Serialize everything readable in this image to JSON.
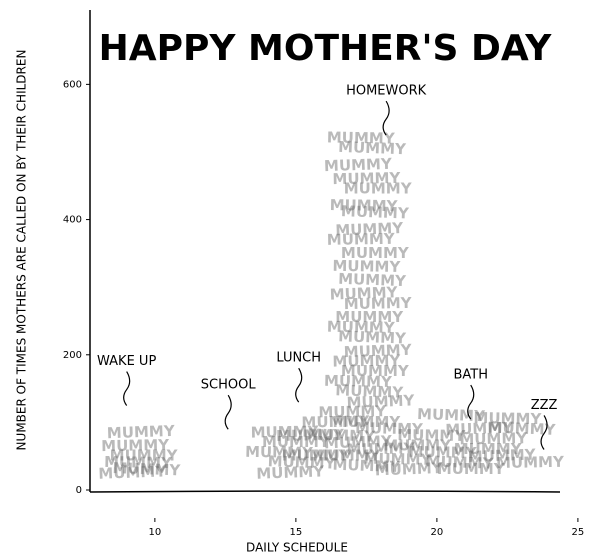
{
  "chart_data": {
    "type": "scatter",
    "title": "HAPPY MOTHER'S DAY",
    "xlabel": "DAILY SCHEDULE",
    "ylabel": "NUMBER OF TIMES MOTHERS ARE CALLED ON BY THEIR CHILDREN",
    "marker_text": "MUMMY",
    "color": "#666666",
    "xlim": [
      7.7,
      25
    ],
    "xticks": [
      10,
      15,
      20,
      25
    ],
    "ylim": [
      0,
      710
    ],
    "yticks": [
      0,
      200,
      400,
      600
    ],
    "x": [
      9.5,
      9.3,
      9.6,
      9.4,
      9.7,
      9.2,
      14.6,
      15.0,
      14.4,
      15.2,
      14.8,
      15.5,
      15.7,
      17.3,
      17.7,
      17.2,
      17.5,
      17.9,
      17.4,
      17.8,
      17.6,
      17.3,
      17.8,
      17.5,
      17.7,
      17.4,
      17.9,
      17.6,
      17.3,
      17.7,
      17.9,
      17.5,
      17.8,
      17.2,
      17.6,
      18.0,
      17.0,
      17.5,
      18.3,
      16.6,
      17.2,
      18.0,
      16.8,
      18.6,
      17.5,
      19.0,
      16.4,
      19.3,
      20.2,
      20.8,
      21.5,
      22.0,
      21.2,
      22.5,
      23.0,
      22.3,
      23.3,
      21.8,
      19.8,
      20.5
    ],
    "y": [
      85,
      65,
      50,
      40,
      30,
      25,
      85,
      70,
      55,
      40,
      25,
      80,
      50,
      520,
      505,
      480,
      460,
      445,
      420,
      410,
      385,
      370,
      350,
      330,
      310,
      290,
      275,
      255,
      240,
      225,
      205,
      190,
      175,
      160,
      145,
      130,
      115,
      100,
      90,
      80,
      70,
      60,
      50,
      45,
      35,
      30,
      100,
      65,
      55,
      40,
      90,
      75,
      30,
      105,
      90,
      50,
      40,
      60,
      80,
      110
    ],
    "annotations": [
      {
        "text": "HOMEWORK",
        "x": 18.2,
        "y": 590
      },
      {
        "text": "WAKE UP",
        "x": 9.0,
        "y": 190
      },
      {
        "text": "SCHOOL",
        "x": 12.6,
        "y": 155
      },
      {
        "text": "LUNCH",
        "x": 15.1,
        "y": 195
      },
      {
        "text": "BATH",
        "x": 21.2,
        "y": 170
      },
      {
        "text": "ZZZ",
        "x": 23.8,
        "y": 125
      }
    ]
  }
}
